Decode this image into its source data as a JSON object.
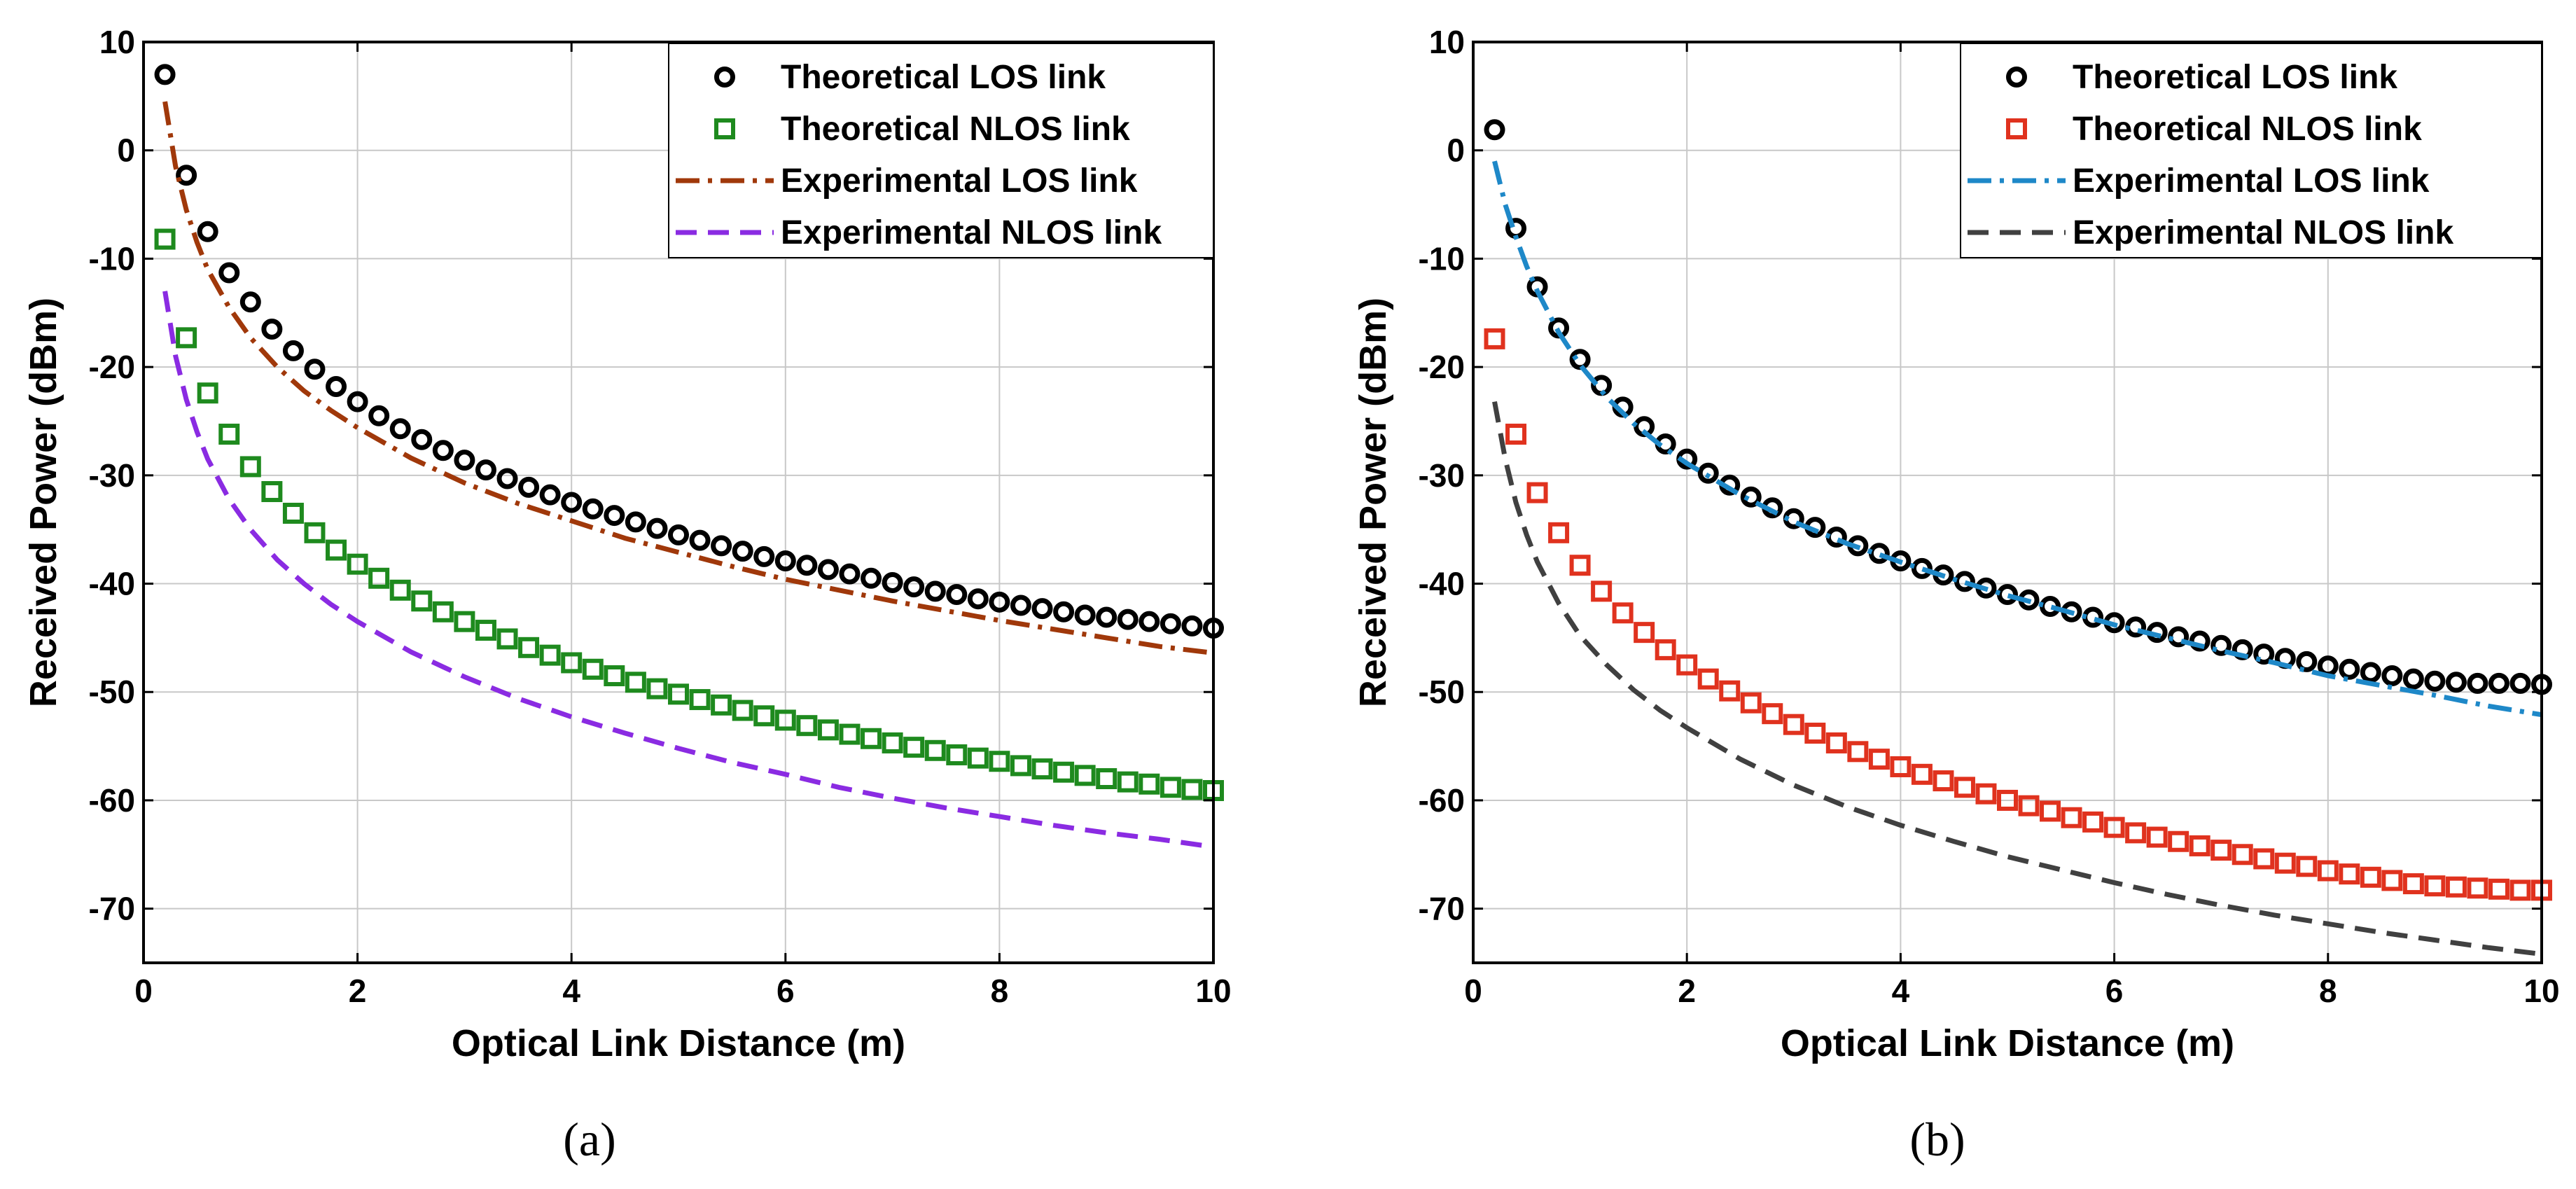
{
  "chart_data": [
    {
      "type": "scatter",
      "panel_label": "(a)",
      "xlabel": "Optical Link Distance (m)",
      "ylabel": "Received Power (dBm)",
      "xlim": [
        0,
        10
      ],
      "ylim": [
        -75,
        10
      ],
      "xticks": [
        0,
        2,
        4,
        6,
        8,
        10
      ],
      "xtick_labels": [
        "0",
        "2",
        "4",
        "6",
        "8",
        "10"
      ],
      "yticks": [
        10,
        0,
        -10,
        -20,
        -30,
        -40,
        -50,
        -60,
        -70
      ],
      "ytick_labels": [
        "10",
        "0",
        "-10",
        "-20",
        "-30",
        "-40",
        "-50",
        "-60",
        "-70"
      ],
      "grid": true,
      "legend_position": "top-right",
      "series": [
        {
          "name": "Theoretical LOS link",
          "kind": "markers",
          "marker": "circle",
          "color": "#000000",
          "x": [
            0.2,
            0.4,
            0.6,
            0.8,
            1.0,
            1.2,
            1.4,
            1.6,
            1.8,
            2.0,
            2.2,
            2.4,
            2.6,
            2.8,
            3.0,
            3.2,
            3.4,
            3.6,
            3.8,
            4.0,
            4.2,
            4.4,
            4.6,
            4.8,
            5.0,
            5.2,
            5.4,
            5.6,
            5.8,
            6.0,
            6.2,
            6.4,
            6.6,
            6.8,
            7.0,
            7.2,
            7.4,
            7.6,
            7.8,
            8.0,
            8.2,
            8.4,
            8.6,
            8.8,
            9.0,
            9.2,
            9.4,
            9.6,
            9.8,
            10.0
          ],
          "y": [
            7.0,
            -2.3,
            -7.5,
            -11.3,
            -14.0,
            -16.5,
            -18.5,
            -20.2,
            -21.8,
            -23.2,
            -24.5,
            -25.7,
            -26.7,
            -27.7,
            -28.6,
            -29.5,
            -30.3,
            -31.1,
            -31.8,
            -32.5,
            -33.1,
            -33.7,
            -34.3,
            -34.9,
            -35.5,
            -36.0,
            -36.5,
            -37.0,
            -37.5,
            -37.9,
            -38.3,
            -38.7,
            -39.1,
            -39.5,
            -39.9,
            -40.3,
            -40.7,
            -41.0,
            -41.4,
            -41.7,
            -42.0,
            -42.3,
            -42.6,
            -42.9,
            -43.1,
            -43.3,
            -43.5,
            -43.7,
            -43.9,
            -44.1
          ]
        },
        {
          "name": "Theoretical NLOS link",
          "kind": "markers",
          "marker": "square",
          "color": "#1e8a1e",
          "x": [
            0.2,
            0.4,
            0.6,
            0.8,
            1.0,
            1.2,
            1.4,
            1.6,
            1.8,
            2.0,
            2.2,
            2.4,
            2.6,
            2.8,
            3.0,
            3.2,
            3.4,
            3.6,
            3.8,
            4.0,
            4.2,
            4.4,
            4.6,
            4.8,
            5.0,
            5.2,
            5.4,
            5.6,
            5.8,
            6.0,
            6.2,
            6.4,
            6.6,
            6.8,
            7.0,
            7.2,
            7.4,
            7.6,
            7.8,
            8.0,
            8.2,
            8.4,
            8.6,
            8.8,
            9.0,
            9.2,
            9.4,
            9.6,
            9.8,
            10.0
          ],
          "y": [
            -8.2,
            -17.3,
            -22.4,
            -26.2,
            -29.2,
            -31.5,
            -33.5,
            -35.3,
            -36.9,
            -38.2,
            -39.5,
            -40.6,
            -41.6,
            -42.6,
            -43.5,
            -44.3,
            -45.1,
            -45.9,
            -46.6,
            -47.3,
            -47.9,
            -48.5,
            -49.1,
            -49.7,
            -50.2,
            -50.7,
            -51.2,
            -51.7,
            -52.2,
            -52.6,
            -53.1,
            -53.5,
            -53.9,
            -54.3,
            -54.7,
            -55.1,
            -55.4,
            -55.8,
            -56.1,
            -56.4,
            -56.8,
            -57.1,
            -57.4,
            -57.7,
            -58.0,
            -58.3,
            -58.5,
            -58.8,
            -59.0,
            -59.1
          ]
        },
        {
          "name": "Experimental LOS link",
          "kind": "line",
          "dash": "dashdot",
          "color": "#a0380a",
          "x": [
            0.2,
            0.3,
            0.4,
            0.5,
            0.6,
            0.8,
            1.0,
            1.25,
            1.5,
            1.75,
            2.0,
            2.5,
            3.0,
            3.5,
            4.0,
            4.5,
            5.0,
            5.5,
            6.0,
            6.5,
            7.0,
            7.5,
            8.0,
            8.5,
            9.0,
            9.5,
            10.0
          ],
          "y": [
            4.5,
            -1.5,
            -5.5,
            -8.5,
            -11.0,
            -14.5,
            -17.3,
            -20.0,
            -22.2,
            -24.0,
            -25.6,
            -28.4,
            -30.7,
            -32.6,
            -34.2,
            -35.8,
            -37.1,
            -38.4,
            -39.6,
            -40.6,
            -41.6,
            -42.5,
            -43.4,
            -44.2,
            -45.0,
            -45.8,
            -46.4
          ]
        },
        {
          "name": "Experimental NLOS link",
          "kind": "line",
          "dash": "dashed",
          "color": "#8a2be2",
          "x": [
            0.2,
            0.3,
            0.4,
            0.5,
            0.6,
            0.8,
            1.0,
            1.25,
            1.5,
            1.75,
            2.0,
            2.5,
            3.0,
            3.5,
            4.0,
            4.5,
            5.0,
            5.5,
            6.0,
            6.5,
            7.0,
            7.5,
            8.0,
            8.5,
            9.0,
            9.5,
            10.0
          ],
          "y": [
            -13.0,
            -19.0,
            -23.0,
            -26.0,
            -28.5,
            -32.2,
            -35.0,
            -37.8,
            -40.0,
            -41.9,
            -43.5,
            -46.3,
            -48.6,
            -50.6,
            -52.3,
            -53.8,
            -55.2,
            -56.5,
            -57.6,
            -58.8,
            -59.8,
            -60.7,
            -61.5,
            -62.3,
            -63.0,
            -63.6,
            -64.3
          ]
        }
      ]
    },
    {
      "type": "scatter",
      "panel_label": "(b)",
      "xlabel": "Optical Link Distance (m)",
      "ylabel": "Received Power (dBm)",
      "xlim": [
        0,
        10
      ],
      "ylim": [
        -75,
        10
      ],
      "xticks": [
        0,
        2,
        4,
        6,
        8,
        10
      ],
      "xtick_labels": [
        "0",
        "2",
        "4",
        "6",
        "8",
        "10"
      ],
      "yticks": [
        10,
        0,
        -10,
        -20,
        -30,
        -40,
        -50,
        -60,
        -70
      ],
      "ytick_labels": [
        "10",
        "0",
        "-10",
        "-20",
        "-30",
        "-40",
        "-50",
        "-60",
        "-70"
      ],
      "grid": true,
      "legend_position": "top-right",
      "series": [
        {
          "name": "Theoretical LOS link",
          "kind": "markers",
          "marker": "circle",
          "color": "#000000",
          "x": [
            0.2,
            0.4,
            0.6,
            0.8,
            1.0,
            1.2,
            1.4,
            1.6,
            1.8,
            2.0,
            2.2,
            2.4,
            2.6,
            2.8,
            3.0,
            3.2,
            3.4,
            3.6,
            3.8,
            4.0,
            4.2,
            4.4,
            4.6,
            4.8,
            5.0,
            5.2,
            5.4,
            5.6,
            5.8,
            6.0,
            6.2,
            6.4,
            6.6,
            6.8,
            7.0,
            7.2,
            7.4,
            7.6,
            7.8,
            8.0,
            8.2,
            8.4,
            8.6,
            8.8,
            9.0,
            9.2,
            9.4,
            9.6,
            9.8,
            10.0
          ],
          "y": [
            1.9,
            -7.2,
            -12.6,
            -16.4,
            -19.3,
            -21.7,
            -23.7,
            -25.5,
            -27.1,
            -28.5,
            -29.8,
            -30.9,
            -32.0,
            -33.0,
            -34.0,
            -34.8,
            -35.7,
            -36.5,
            -37.2,
            -37.9,
            -38.6,
            -39.2,
            -39.8,
            -40.4,
            -41.0,
            -41.5,
            -42.1,
            -42.6,
            -43.1,
            -43.6,
            -44.0,
            -44.5,
            -44.9,
            -45.3,
            -45.7,
            -46.1,
            -46.5,
            -46.9,
            -47.2,
            -47.6,
            -47.9,
            -48.2,
            -48.5,
            -48.8,
            -49.0,
            -49.1,
            -49.2,
            -49.2,
            -49.2,
            -49.3
          ]
        },
        {
          "name": "Theoretical NLOS link",
          "kind": "markers",
          "marker": "square",
          "color": "#e0321e",
          "x": [
            0.2,
            0.4,
            0.6,
            0.8,
            1.0,
            1.2,
            1.4,
            1.6,
            1.8,
            2.0,
            2.2,
            2.4,
            2.6,
            2.8,
            3.0,
            3.2,
            3.4,
            3.6,
            3.8,
            4.0,
            4.2,
            4.4,
            4.6,
            4.8,
            5.0,
            5.2,
            5.4,
            5.6,
            5.8,
            6.0,
            6.2,
            6.4,
            6.6,
            6.8,
            7.0,
            7.2,
            7.4,
            7.6,
            7.8,
            8.0,
            8.2,
            8.4,
            8.6,
            8.8,
            9.0,
            9.2,
            9.4,
            9.6,
            9.8,
            10.0
          ],
          "y": [
            -17.4,
            -26.2,
            -31.6,
            -35.3,
            -38.3,
            -40.7,
            -42.7,
            -44.5,
            -46.1,
            -47.5,
            -48.8,
            -49.9,
            -51.0,
            -52.0,
            -53.0,
            -53.8,
            -54.7,
            -55.5,
            -56.2,
            -56.9,
            -57.6,
            -58.2,
            -58.8,
            -59.4,
            -60.0,
            -60.5,
            -61.0,
            -61.6,
            -62.0,
            -62.5,
            -63.0,
            -63.4,
            -63.8,
            -64.2,
            -64.6,
            -65.0,
            -65.4,
            -65.8,
            -66.1,
            -66.5,
            -66.8,
            -67.1,
            -67.4,
            -67.7,
            -67.9,
            -68.0,
            -68.1,
            -68.2,
            -68.3,
            -68.3
          ]
        },
        {
          "name": "Experimental LOS link",
          "kind": "line",
          "dash": "dashdot",
          "color": "#1e88c8",
          "x": [
            0.2,
            0.3,
            0.4,
            0.5,
            0.6,
            0.8,
            1.0,
            1.25,
            1.5,
            1.75,
            2.0,
            2.5,
            3.0,
            3.5,
            4.0,
            4.5,
            5.0,
            5.5,
            6.0,
            6.5,
            7.0,
            7.5,
            8.0,
            8.5,
            9.0,
            9.5,
            10.0
          ],
          "y": [
            -1.0,
            -5.0,
            -8.0,
            -10.7,
            -13.0,
            -16.8,
            -19.8,
            -22.8,
            -25.2,
            -27.2,
            -28.9,
            -31.8,
            -34.3,
            -36.3,
            -38.0,
            -39.6,
            -41.1,
            -42.4,
            -43.8,
            -45.0,
            -46.2,
            -47.3,
            -48.5,
            -49.4,
            -50.3,
            -51.3,
            -52.1
          ]
        },
        {
          "name": "Experimental NLOS link",
          "kind": "line",
          "dash": "dashed",
          "color": "#404040",
          "x": [
            0.2,
            0.3,
            0.4,
            0.5,
            0.6,
            0.8,
            1.0,
            1.25,
            1.5,
            1.75,
            2.0,
            2.5,
            3.0,
            3.5,
            4.0,
            4.5,
            5.0,
            5.5,
            6.0,
            6.5,
            7.0,
            7.5,
            8.0,
            8.5,
            9.0,
            9.5,
            10.0
          ],
          "y": [
            -23.2,
            -28.5,
            -32.5,
            -35.5,
            -38.0,
            -41.8,
            -44.8,
            -47.5,
            -49.8,
            -51.7,
            -53.3,
            -56.2,
            -58.6,
            -60.6,
            -62.3,
            -63.8,
            -65.2,
            -66.4,
            -67.6,
            -68.7,
            -69.7,
            -70.6,
            -71.4,
            -72.2,
            -72.9,
            -73.6,
            -74.2
          ]
        }
      ]
    }
  ]
}
